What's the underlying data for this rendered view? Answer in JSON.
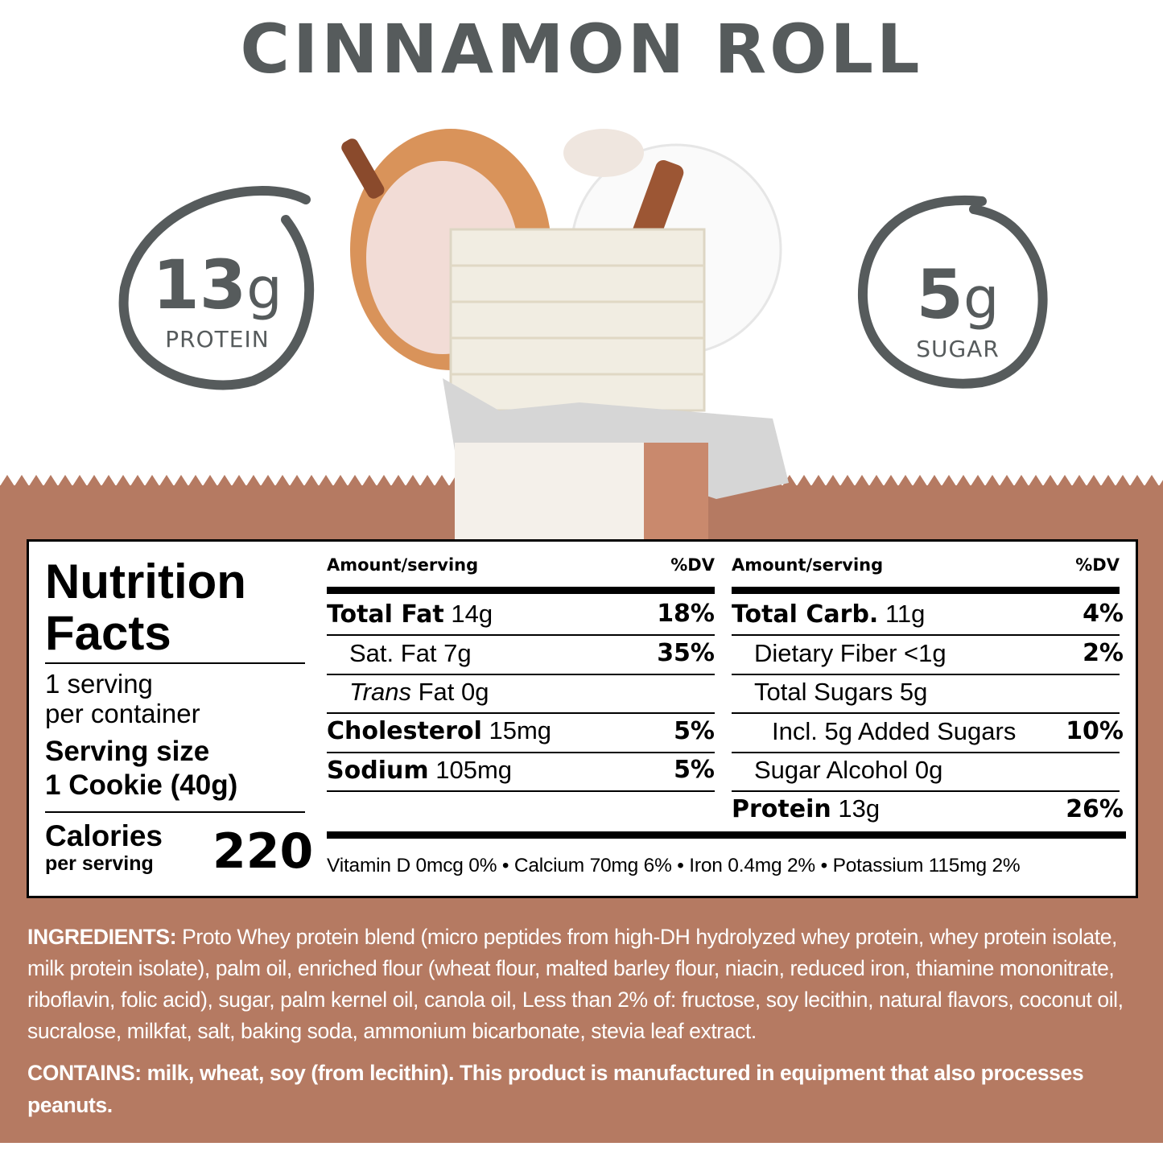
{
  "title": "CINNAMON ROLL",
  "badges": [
    {
      "value": "13",
      "unit": "g",
      "label": "PROTEIN"
    },
    {
      "value": "5",
      "unit": "g",
      "label": "SUGAR"
    }
  ],
  "colors": {
    "brand_brown": "#b57a62",
    "text_gray": "#565b5c"
  },
  "nutrition": {
    "title_line1": "Nutrition",
    "title_line2": "Facts",
    "servings_line1": "1 serving",
    "servings_line2": "per container",
    "serving_size_label": "Serving size",
    "serving_size_value": "1 Cookie (40g)",
    "calories_label": "Calories",
    "calories_sub": "per serving",
    "calories": "220",
    "header_amount": "Amount/serving",
    "header_dv": "%DV",
    "left_rows": [
      {
        "name": "Total Fat",
        "amount": "14g",
        "dv": "18%"
      },
      {
        "name": "Sat. Fat 7g",
        "dv": "35%"
      },
      {
        "name": "Trans",
        "rest": " Fat 0g",
        "dv": ""
      },
      {
        "name": "Cholesterol",
        "amount": "15mg",
        "dv": "5%"
      },
      {
        "name": "Sodium",
        "amount": "105mg",
        "dv": "5%"
      }
    ],
    "right_rows": [
      {
        "name": "Total Carb.",
        "amount": "11g",
        "dv": "4%"
      },
      {
        "name": "Dietary Fiber <1g",
        "dv": "2%"
      },
      {
        "name": "Total Sugars 5g",
        "dv": ""
      },
      {
        "name": "Incl. 5g Added Sugars",
        "dv": "10%"
      },
      {
        "name": "Sugar Alcohol 0g",
        "dv": ""
      },
      {
        "name": "Protein",
        "amount": "13g",
        "dv": "26%"
      }
    ],
    "vitamins": "Vitamin D 0mcg 0% • Calcium 70mg 6% • Iron 0.4mg 2% • Potassium 115mg 2%"
  },
  "ingredients_label": "INGREDIENTS:",
  "ingredients": " Proto Whey protein blend (micro peptides from high-DH hydrolyzed whey protein, whey protein isolate, milk protein isolate), palm oil, enriched flour (wheat flour, malted barley flour, niacin, reduced iron, thiamine mononitrate, riboflavin, folic acid), sugar, palm kernel oil, canola oil, Less than 2% of: fructose, soy lecithin, natural flavors, coconut oil, sucralose, milkfat, salt, baking soda, ammonium bicarbonate, stevia leaf extract.",
  "contains": "CONTAINS: milk, wheat, soy (from lecithin). This product is manufactured in equipment that also processes peanuts."
}
